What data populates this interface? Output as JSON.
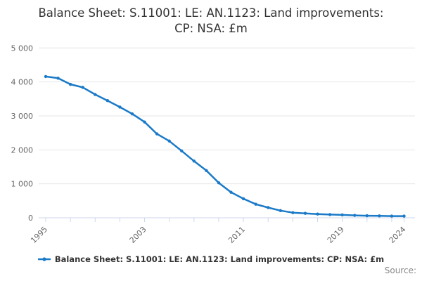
{
  "header": {
    "title_line1": "Balance Sheet: S.11001: LE: AN.1123: Land improvements:",
    "title_line2": "CP: NSA: £m"
  },
  "legend": {
    "label": "Balance Sheet: S.11001: LE: AN.1123: Land improvements: CP: NSA: £m"
  },
  "footer": {
    "source_label": "Source:"
  },
  "colors": {
    "line": "#1a7ac8",
    "grid": "#e6e6e6",
    "axis": "#ccd6eb",
    "tick_label": "#666666",
    "title": "#333333",
    "source": "#888888"
  },
  "chart_data": {
    "type": "line",
    "title": "Balance Sheet: S.11001: LE: AN.1123: Land improvements: CP: NSA: £m",
    "x": [
      1995,
      1996,
      1997,
      1998,
      1999,
      2000,
      2001,
      2002,
      2003,
      2004,
      2005,
      2006,
      2007,
      2008,
      2009,
      2010,
      2011,
      2012,
      2013,
      2014,
      2015,
      2016,
      2017,
      2018,
      2019,
      2020,
      2021,
      2022,
      2023,
      2024
    ],
    "series": [
      {
        "name": "Balance Sheet: S.11001: LE: AN.1123: Land improvements: CP: NSA: £m",
        "values": [
          4160,
          4110,
          3930,
          3840,
          3630,
          3450,
          3260,
          3060,
          2820,
          2470,
          2260,
          1970,
          1670,
          1390,
          1030,
          750,
          560,
          400,
          300,
          210,
          150,
          130,
          110,
          95,
          85,
          70,
          60,
          55,
          50,
          50
        ]
      }
    ],
    "ylim": [
      0,
      5000
    ],
    "ytick_values": [
      0,
      1000,
      2000,
      3000,
      4000,
      5000
    ],
    "ytick_labels": [
      "0",
      "1 000",
      "2 000",
      "3 000",
      "4 000",
      "5 000"
    ],
    "xtick_step": 2,
    "xtick_labeled": [
      1995,
      2003,
      2011,
      2019,
      2024
    ],
    "grid": true,
    "legend_position": "bottom"
  }
}
